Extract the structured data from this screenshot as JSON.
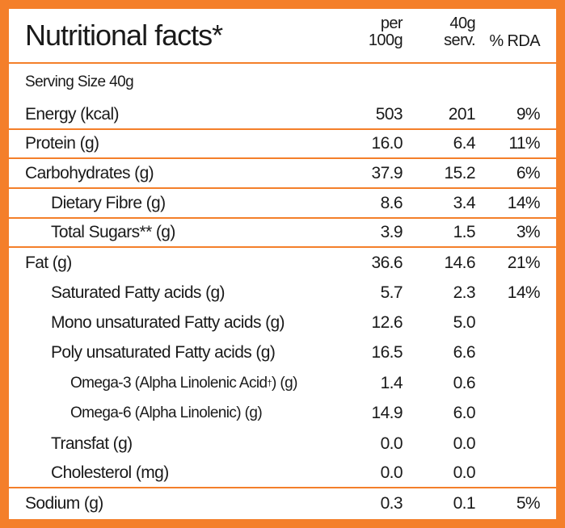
{
  "header": {
    "title": "Nutritional facts*",
    "col1_line1": "per",
    "col1_line2": "100g",
    "col2_line1": "40g",
    "col2_line2": "serv.",
    "col3": "% RDA"
  },
  "serving_size": "Serving Size 40g",
  "rows": [
    {
      "label": "Energy (kcal)",
      "per100g": "503",
      "serving": "201",
      "rda": "9%"
    },
    {
      "label": "Protein (g)",
      "per100g": "16.0",
      "serving": "6.4",
      "rda": "11%"
    },
    {
      "label": "Carbohydrates (g)",
      "per100g": "37.9",
      "serving": "15.2",
      "rda": "6%"
    },
    {
      "label": "Dietary Fibre (g)",
      "per100g": "8.6",
      "serving": "3.4",
      "rda": "14%"
    },
    {
      "label": "Total Sugars** (g)",
      "per100g": "3.9",
      "serving": "1.5",
      "rda": "3%"
    },
    {
      "label": "Fat (g)",
      "per100g": "36.6",
      "serving": "14.6",
      "rda": "21%"
    },
    {
      "label": "Saturated Fatty acids (g)",
      "per100g": "5.7",
      "serving": "2.3",
      "rda": "14%"
    },
    {
      "label": "Mono unsaturated Fatty acids (g)",
      "per100g": "12.6",
      "serving": "5.0",
      "rda": ""
    },
    {
      "label": "Poly unsaturated Fatty acids (g)",
      "per100g": "16.5",
      "serving": "6.6",
      "rda": ""
    },
    {
      "label_pre": "Omega-3 (Alpha Linolenic Acid",
      "label_sup": "†",
      "label_post": ") (g)",
      "per100g": "1.4",
      "serving": "0.6",
      "rda": ""
    },
    {
      "label": "Omega-6 (Alpha Linolenic) (g)",
      "per100g": "14.9",
      "serving": "6.0",
      "rda": ""
    },
    {
      "label": "Transfat (g)",
      "per100g": "0.0",
      "serving": "0.0",
      "rda": ""
    },
    {
      "label": "Cholesterol (mg)",
      "per100g": "0.0",
      "serving": "0.0",
      "rda": ""
    },
    {
      "label": "Sodium (g)",
      "per100g": "0.3",
      "serving": "0.1",
      "rda": "5%"
    }
  ],
  "colors": {
    "border": "#f47f2a",
    "background": "#ffffff",
    "text": "#1a1a1a"
  }
}
